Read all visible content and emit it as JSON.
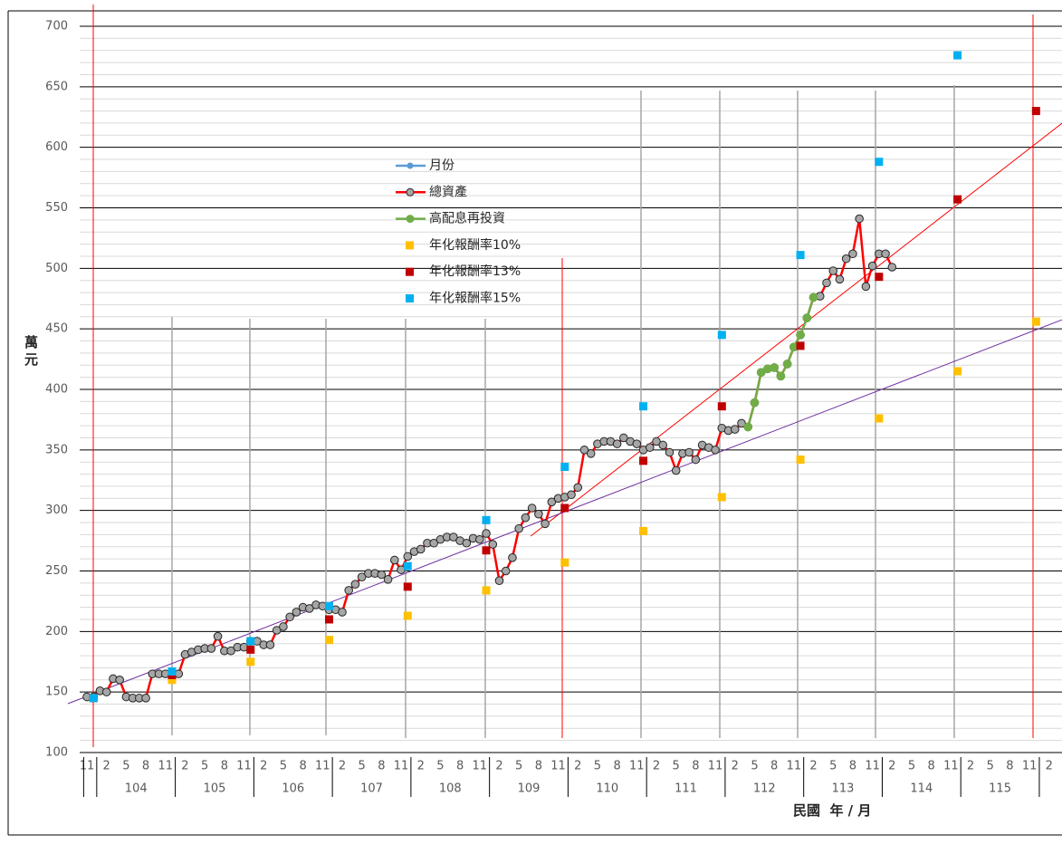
{
  "chart_data": {
    "type": "line",
    "y_label": "萬元",
    "x_label": "民國  年 / 月",
    "categories": [
      "11",
      null,
      null,
      "2",
      null,
      null,
      "5",
      null,
      null,
      "8",
      null,
      null,
      "11",
      null,
      null,
      "2",
      null,
      null,
      "5",
      null,
      null,
      "8",
      null,
      null,
      "11",
      null,
      null,
      "2",
      null,
      null,
      "5",
      null,
      null,
      "8",
      null,
      null,
      "11",
      null,
      null,
      "2",
      null,
      null,
      "5",
      null,
      null,
      "8",
      null,
      null,
      "11",
      null,
      null,
      "2",
      null,
      null,
      "5",
      null,
      null,
      "8",
      null,
      null,
      "11",
      null,
      null,
      "2",
      null,
      null,
      "5",
      null,
      null,
      "8",
      null,
      null,
      "11",
      null,
      null,
      "2",
      null,
      null,
      "5",
      null,
      null,
      "8",
      null,
      null,
      "11",
      null,
      null,
      "2",
      null,
      null,
      "5",
      null,
      null,
      "8",
      null,
      null,
      "11",
      null,
      null,
      "2",
      null,
      null,
      "5",
      null,
      null,
      "8",
      null,
      null,
      "11",
      null,
      null,
      "2",
      null,
      null,
      "5",
      null,
      null,
      "8",
      null,
      null,
      "11",
      null,
      null,
      "2",
      null,
      null,
      "5",
      null,
      null,
      "8",
      null,
      null,
      "11",
      null,
      null,
      "2",
      null,
      null,
      "5",
      null,
      null,
      "8",
      null,
      null,
      "11",
      null,
      null,
      "2"
    ],
    "year_groups": [
      "104",
      "105",
      "106",
      "107",
      "108",
      "109",
      "110",
      "111",
      "112",
      "113",
      "114",
      "115"
    ],
    "ylim": [
      100,
      700
    ],
    "yticks": [
      100,
      150,
      200,
      250,
      300,
      350,
      400,
      450,
      500,
      550,
      600,
      650,
      700
    ],
    "grid": true,
    "minor_grid": true,
    "series": [
      {
        "name": "月份",
        "color": "#5b9bd5",
        "style": "line"
      },
      {
        "name": "總資產",
        "color": "#ff0000",
        "marker_color": "#a6a6a6",
        "style": "line",
        "values": [
          146,
          146,
          151,
          150,
          161,
          160,
          146,
          145,
          145,
          145,
          165,
          165,
          165,
          164,
          165,
          181,
          183,
          185,
          186,
          186,
          196,
          184,
          184,
          187,
          187,
          192,
          192,
          189,
          189,
          201,
          204,
          212,
          216,
          220,
          219,
          222,
          221,
          218,
          218,
          216,
          234,
          239,
          245,
          248,
          248,
          247,
          243,
          259,
          251,
          262,
          266,
          268,
          273,
          273,
          276,
          278,
          278,
          275,
          273,
          277,
          276,
          281,
          272,
          242,
          250,
          261,
          285,
          294,
          302,
          297,
          289,
          307,
          310,
          311,
          313,
          319,
          350,
          347,
          355,
          357,
          357,
          355,
          360,
          357,
          355,
          350,
          352,
          357,
          354,
          348,
          333,
          347,
          348,
          342,
          354,
          352,
          350,
          368,
          366,
          367,
          372,
          369,
          389,
          414,
          417,
          418,
          411,
          421,
          435,
          445,
          459,
          476,
          477,
          488,
          498,
          491,
          508,
          512,
          541,
          485,
          502,
          512,
          512,
          501,
          null,
          null,
          null,
          null,
          null,
          null,
          null,
          null,
          null,
          null,
          null,
          null,
          null,
          null,
          null,
          null,
          null,
          null,
          null,
          null,
          null,
          null,
          null,
          null
        ]
      },
      {
        "name": "高配息再投資",
        "color": "#70ad47",
        "marker_color": "#70ad47",
        "style": "line",
        "values": [
          null,
          null,
          null,
          null,
          null,
          null,
          null,
          null,
          null,
          null,
          null,
          null,
          null,
          null,
          null,
          null,
          null,
          null,
          null,
          null,
          null,
          null,
          null,
          null,
          null,
          null,
          null,
          null,
          null,
          null,
          null,
          null,
          null,
          null,
          null,
          null,
          null,
          null,
          null,
          null,
          null,
          null,
          null,
          null,
          null,
          null,
          null,
          null,
          null,
          null,
          null,
          null,
          null,
          null,
          null,
          null,
          null,
          null,
          null,
          null,
          null,
          null,
          null,
          null,
          null,
          null,
          null,
          null,
          null,
          null,
          null,
          null,
          null,
          null,
          null,
          null,
          null,
          null,
          null,
          null,
          null,
          null,
          null,
          null,
          null,
          null,
          null,
          null,
          null,
          null,
          null,
          null,
          null,
          null,
          null,
          null,
          null,
          null,
          null,
          null,
          null,
          369,
          389,
          414,
          417,
          418,
          411,
          421,
          435,
          445,
          459,
          476,
          null,
          null,
          null,
          null,
          null,
          null,
          null,
          null,
          null,
          null,
          null,
          null,
          null,
          null,
          null,
          null,
          null,
          null,
          null,
          null,
          null,
          null,
          null,
          null,
          null,
          null,
          null,
          null,
          null,
          null,
          null,
          null,
          null,
          null,
          null,
          null
        ]
      },
      {
        "name": "年化報酬率10%",
        "color": "#ffc000",
        "style": "square",
        "values": [
          null,
          145,
          null,
          null,
          null,
          null,
          null,
          null,
          null,
          null,
          null,
          null,
          null,
          160,
          null,
          null,
          null,
          null,
          null,
          null,
          null,
          null,
          null,
          null,
          null,
          175,
          null,
          null,
          null,
          null,
          null,
          null,
          null,
          null,
          null,
          null,
          null,
          193,
          null,
          null,
          null,
          null,
          null,
          null,
          null,
          null,
          null,
          null,
          null,
          213,
          null,
          null,
          null,
          null,
          null,
          null,
          null,
          null,
          null,
          null,
          null,
          234,
          null,
          null,
          null,
          null,
          null,
          null,
          null,
          null,
          null,
          null,
          null,
          257,
          null,
          null,
          null,
          null,
          null,
          null,
          null,
          null,
          null,
          null,
          null,
          283,
          null,
          null,
          null,
          null,
          null,
          null,
          null,
          null,
          null,
          null,
          null,
          311,
          null,
          null,
          null,
          null,
          null,
          null,
          null,
          null,
          null,
          null,
          null,
          342,
          null,
          null,
          null,
          null,
          null,
          null,
          null,
          null,
          null,
          null,
          null,
          376,
          null,
          null,
          null,
          null,
          null,
          null,
          null,
          null,
          null,
          null,
          null,
          415,
          null,
          null,
          null,
          null,
          null,
          null,
          null,
          null,
          null,
          null,
          null,
          456,
          null,
          null
        ]
      },
      {
        "name": "年化報酬率13%",
        "color": "#c00000",
        "style": "square",
        "values": [
          null,
          145,
          null,
          null,
          null,
          null,
          null,
          null,
          null,
          null,
          null,
          null,
          null,
          164,
          null,
          null,
          null,
          null,
          null,
          null,
          null,
          null,
          null,
          null,
          null,
          185,
          null,
          null,
          null,
          null,
          null,
          null,
          null,
          null,
          null,
          null,
          null,
          210,
          null,
          null,
          null,
          null,
          null,
          null,
          null,
          null,
          null,
          null,
          null,
          237,
          null,
          null,
          null,
          null,
          null,
          null,
          null,
          null,
          null,
          null,
          null,
          267,
          null,
          null,
          null,
          null,
          null,
          null,
          null,
          null,
          null,
          null,
          null,
          302,
          null,
          null,
          null,
          null,
          null,
          null,
          null,
          null,
          null,
          null,
          null,
          341,
          null,
          null,
          null,
          null,
          null,
          null,
          null,
          null,
          null,
          null,
          null,
          386,
          null,
          null,
          null,
          null,
          null,
          null,
          null,
          null,
          null,
          null,
          null,
          436,
          null,
          null,
          null,
          null,
          null,
          null,
          null,
          null,
          null,
          null,
          null,
          493,
          null,
          null,
          null,
          null,
          null,
          null,
          null,
          null,
          null,
          null,
          null,
          557,
          null,
          null,
          null,
          null,
          null,
          null,
          null,
          null,
          null,
          null,
          null,
          630,
          null,
          null
        ]
      },
      {
        "name": "年化報酬率15%",
        "color": "#00b0f0",
        "style": "square",
        "values": [
          null,
          145,
          null,
          null,
          null,
          null,
          null,
          null,
          null,
          null,
          null,
          null,
          null,
          167,
          null,
          null,
          null,
          null,
          null,
          null,
          null,
          null,
          null,
          null,
          null,
          192,
          null,
          null,
          null,
          null,
          null,
          null,
          null,
          null,
          null,
          null,
          null,
          221,
          null,
          null,
          null,
          null,
          null,
          null,
          null,
          null,
          null,
          null,
          null,
          254,
          null,
          null,
          null,
          null,
          null,
          null,
          null,
          null,
          null,
          null,
          null,
          292,
          null,
          null,
          null,
          null,
          null,
          null,
          null,
          null,
          null,
          null,
          null,
          336,
          null,
          null,
          null,
          null,
          null,
          null,
          null,
          null,
          null,
          null,
          null,
          386,
          null,
          null,
          null,
          null,
          null,
          null,
          null,
          null,
          null,
          null,
          null,
          445,
          null,
          null,
          null,
          null,
          null,
          null,
          null,
          null,
          null,
          null,
          null,
          511,
          null,
          null,
          null,
          null,
          null,
          null,
          null,
          null,
          null,
          null,
          null,
          588,
          null,
          null,
          null,
          null,
          null,
          null,
          null,
          null,
          null,
          null,
          null,
          676,
          null,
          null,
          null,
          null,
          null,
          null,
          null,
          null,
          null,
          null,
          null,
          null,
          null,
          null
        ]
      }
    ],
    "trendlines": [
      {
        "color": "#ff0000",
        "from": [
          67.8,
          278.8
        ],
        "to": [
          149,
          620
        ]
      },
      {
        "color": "#7030a0",
        "from": [
          -2.9,
          140.4
        ],
        "to": [
          149,
          457.6
        ]
      }
    ]
  }
}
